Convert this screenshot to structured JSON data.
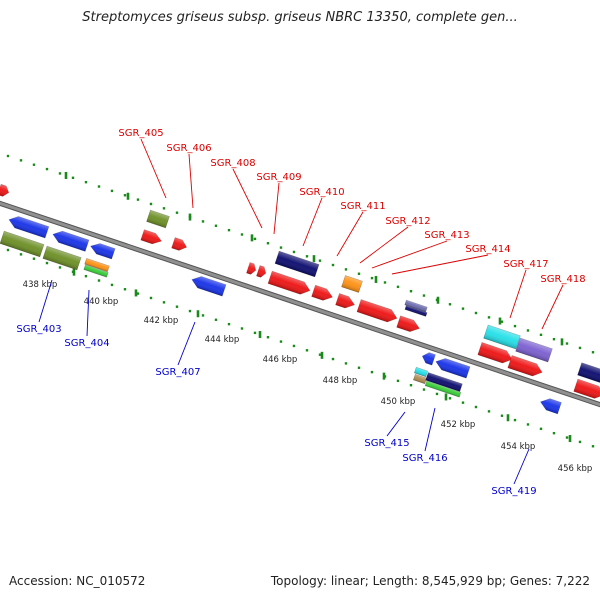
{
  "header": {
    "title": "Streptomyces griseus subsp. griseus NBRC 13350, complete gen..."
  },
  "footer": {
    "accession": "Accession: NC_010572",
    "summary": "Topology: linear; Length: 8,545,929 bp; Genes: 7,222"
  },
  "genome_map": {
    "ticks": [
      "438 kbp",
      "440 kbp",
      "442 kbp",
      "444 kbp",
      "446 kbp",
      "448 kbp",
      "450 kbp",
      "452 kbp",
      "454 kbp",
      "456 kbp"
    ],
    "forward_genes": [
      {
        "id": "SGR_405",
        "color": "#6b8e23"
      },
      {
        "id": "SGR_406",
        "color": "#ee1111"
      },
      {
        "id": "SGR_408",
        "color": "#ee1111"
      },
      {
        "id": "SGR_409",
        "color": "#ee1111"
      },
      {
        "id": "SGR_410",
        "color": "#0a0a6e"
      },
      {
        "id": "SGR_411",
        "color": "#ff9010"
      },
      {
        "id": "SGR_412",
        "color": "#ee1111"
      },
      {
        "id": "SGR_413",
        "color": "#ee1111"
      },
      {
        "id": "SGR_414",
        "color": "#6a6ab0"
      },
      {
        "id": "SGR_417",
        "color": "#22e0e8"
      },
      {
        "id": "SGR_418",
        "color": "#7a5ed0"
      }
    ],
    "reverse_genes": [
      {
        "id": "SGR_403",
        "color": "#1530e8"
      },
      {
        "id": "SGR_404",
        "color": "#66a020"
      },
      {
        "id": "SGR_407",
        "color": "#1530e8"
      },
      {
        "id": "SGR_415",
        "color": "#1530e8"
      },
      {
        "id": "SGR_416",
        "color": "#0a0a6e"
      },
      {
        "id": "SGR_419",
        "color": "#1530e8"
      }
    ],
    "colors": {
      "forward_label": "#dd0000",
      "reverse_label": "#0000cc",
      "tick_marks": "#1a8a1a",
      "backbone": "#909090"
    }
  }
}
